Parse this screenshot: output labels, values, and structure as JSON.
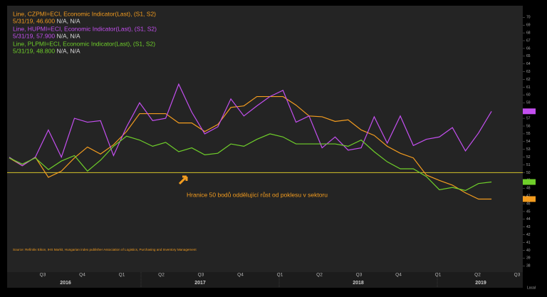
{
  "chart_data": {
    "type": "line",
    "quarters": [
      "Q3",
      "Q4",
      "Q1",
      "Q2",
      "Q3",
      "Q4",
      "Q1",
      "Q2",
      "Q3",
      "Q4",
      "Q1",
      "Q2",
      "Q3"
    ],
    "years": [
      "2016",
      "2017",
      "2018",
      "2019"
    ],
    "x_unit_label": "Local",
    "ylim": [
      37.2,
      71.5
    ],
    "yticks": [
      38,
      39,
      40,
      41,
      42,
      43,
      44,
      45,
      46,
      47,
      48,
      49,
      50,
      51,
      52,
      53,
      54,
      55,
      56,
      57,
      58,
      59,
      60,
      61,
      62,
      63,
      64,
      65,
      66,
      67,
      68,
      69,
      70
    ],
    "threshold": {
      "value": 50,
      "color": "#d4c22a",
      "label": "Hranice 50 bodů oddělující růst od poklesu v sektoru"
    },
    "source": "Source: Refinitiv Eikon, IHS Markit, Hungarian index publisher Association of Logistics, Purchasing and Inventory Management",
    "series": [
      {
        "name": "Line, CZPMI=ECI, Economic Indicator(Last), (S1, S2)",
        "last": "5/31/19, 46.600",
        "extra": "N/A, N/A",
        "color": "#f39c1f",
        "values": [
          51.9,
          50.9,
          52.0,
          49.4,
          50.2,
          51.9,
          53.3,
          52.4,
          53.6,
          55.3,
          57.6,
          57.6,
          57.6,
          56.4,
          56.4,
          55.3,
          56.2,
          58.4,
          58.6,
          59.8,
          59.8,
          59.8,
          58.7,
          57.3,
          57.2,
          56.6,
          56.8,
          55.5,
          54.8,
          53.4,
          52.5,
          51.9,
          49.7,
          49.0,
          48.4,
          47.4,
          46.6,
          46.6
        ]
      },
      {
        "name": "Line, HUPMI=ECI, Economic Indicator(Last), (S1, S2)",
        "last": "5/31/19, 57.900",
        "extra": "N/A, N/A",
        "color": "#c44ff0",
        "values": [
          52.0,
          50.9,
          52.0,
          55.5,
          52.0,
          57.0,
          56.5,
          56.7,
          52.2,
          55.9,
          59.0,
          56.7,
          57.0,
          61.4,
          57.8,
          55.0,
          55.9,
          59.5,
          57.3,
          58.6,
          59.8,
          60.6,
          56.5,
          57.3,
          53.2,
          54.6,
          52.9,
          53.2,
          57.2,
          53.8,
          57.3,
          53.5,
          54.3,
          54.6,
          55.8,
          52.8,
          55.1,
          57.9
        ]
      },
      {
        "name": "Line, PLPMI=ECI, Economic Indicator(Last), (S1, S2)",
        "last": "5/31/19, 48.800",
        "extra": "N/A, N/A",
        "color": "#6fcf2a",
        "values": [
          51.9,
          51.1,
          51.9,
          50.4,
          51.5,
          52.2,
          50.2,
          51.6,
          53.4,
          54.7,
          54.2,
          53.4,
          53.9,
          52.7,
          53.2,
          52.3,
          52.5,
          53.7,
          53.4,
          54.3,
          55.0,
          54.6,
          53.7,
          53.7,
          53.7,
          53.7,
          53.4,
          54.2,
          52.7,
          51.4,
          50.5,
          50.5,
          49.5,
          47.8,
          48.1,
          47.7,
          48.6,
          48.8
        ]
      }
    ]
  }
}
